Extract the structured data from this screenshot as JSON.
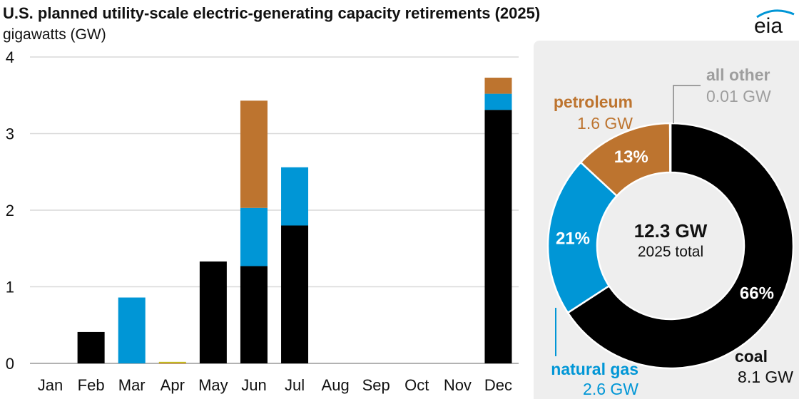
{
  "title": "U.S. planned utility-scale electric-generating capacity retirements (2025)",
  "unit_label": "gigawatts (GW)",
  "logo_text": "eia",
  "colors": {
    "coal": "#000000",
    "natural_gas": "#0096d6",
    "petroleum": "#bd742f",
    "all_other": "#c4c81b",
    "grid": "#d9d9d9",
    "panel": "#eeeeee",
    "all_other_label": "#9e9e9e"
  },
  "chart_data": [
    {
      "type": "bar",
      "stacked": true,
      "categories": [
        "Jan",
        "Feb",
        "Mar",
        "Apr",
        "May",
        "Jun",
        "Jul",
        "Aug",
        "Sep",
        "Oct",
        "Nov",
        "Dec"
      ],
      "series": [
        {
          "key": "coal",
          "values": [
            0,
            0.41,
            0,
            0,
            1.33,
            1.27,
            1.8,
            0,
            0,
            0,
            0,
            3.31
          ]
        },
        {
          "key": "natural_gas",
          "values": [
            0,
            0,
            0.86,
            0,
            0,
            0.76,
            0.76,
            0,
            0,
            0,
            0,
            0.21
          ]
        },
        {
          "key": "petroleum",
          "values": [
            0,
            0,
            0,
            0.01,
            0,
            1.4,
            0,
            0,
            0,
            0,
            0,
            0.21
          ]
        },
        {
          "key": "all_other",
          "values": [
            0,
            0,
            0,
            0.01,
            0,
            0,
            0,
            0,
            0,
            0,
            0,
            0
          ]
        }
      ],
      "ylim": [
        0,
        4
      ],
      "yticks": [
        "0",
        "1",
        "2",
        "3",
        "4"
      ],
      "grid": true
    },
    {
      "type": "pie",
      "donut": true,
      "center_value": "12.3 GW",
      "center_label": "2025 total",
      "slices": [
        {
          "key": "coal",
          "label": "coal",
          "value_text": "8.1 GW",
          "percent_text": "66%",
          "value": 8.1
        },
        {
          "key": "natural_gas",
          "label": "natural gas",
          "value_text": "2.6 GW",
          "percent_text": "21%",
          "value": 2.6
        },
        {
          "key": "petroleum",
          "label": "petroleum",
          "value_text": "1.6 GW",
          "percent_text": "13%",
          "value": 1.6
        },
        {
          "key": "all_other",
          "label": "all other",
          "value_text": "0.01 GW",
          "percent_text": "",
          "value": 0.01
        }
      ]
    }
  ]
}
